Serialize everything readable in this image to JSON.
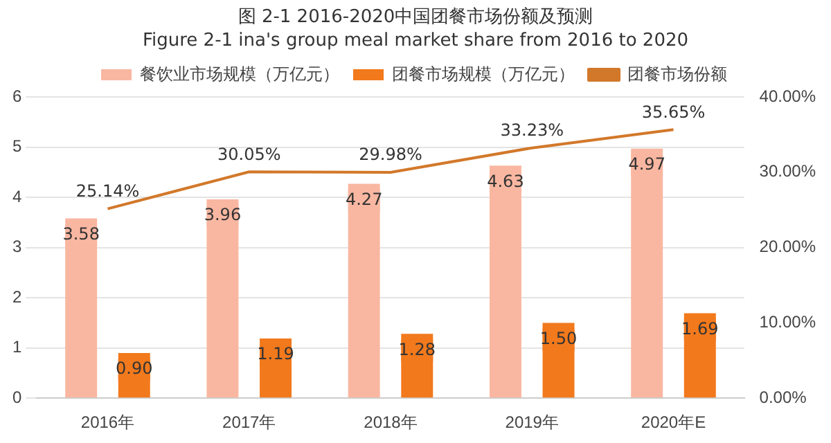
{
  "chart_data": {
    "type": "bar",
    "title": "图 2-1 2016-2020中国团餐市场份额及预测",
    "subtitle": "Figure 2-1 ina's group meal market share from 2016 to 2020",
    "categories": [
      "2016年",
      "2017年",
      "2018年",
      "2019年",
      "2020年E"
    ],
    "series": [
      {
        "name": "餐饮业市场规模（万亿元）",
        "color": "#f9b7a1",
        "values": [
          3.58,
          3.96,
          4.27,
          4.63,
          4.97
        ],
        "value_labels": [
          "3.58",
          "3.96",
          "4.27",
          "4.63",
          "4.97"
        ]
      },
      {
        "name": "团餐市场规模（万亿元）",
        "color": "#f2791c",
        "values": [
          0.9,
          1.19,
          1.28,
          1.5,
          1.69
        ],
        "value_labels": [
          "0.90",
          "1.19",
          "1.28",
          "1.50",
          "1.69"
        ]
      },
      {
        "name": "团餐市场份额",
        "type": "line",
        "axis": "y2",
        "color": "#d2782a",
        "values": [
          25.14,
          30.05,
          29.98,
          33.23,
          35.65
        ],
        "value_labels": [
          "25.14%",
          "30.05%",
          "29.98%",
          "33.23%",
          "35.65%"
        ]
      }
    ],
    "ylim": [
      0,
      6
    ],
    "yticks": [
      0,
      1,
      2,
      3,
      4,
      5,
      6
    ],
    "y2lim": [
      0,
      40
    ],
    "y2ticks": [
      {
        "value": 0,
        "label": "0.00%"
      },
      {
        "value": 10,
        "label": "10.00%"
      },
      {
        "value": 20,
        "label": "20.00%"
      },
      {
        "value": 30,
        "label": "30.00%"
      },
      {
        "value": 40,
        "label": "40.00%"
      }
    ],
    "grid": "y",
    "legend": "top",
    "marker": "none"
  }
}
